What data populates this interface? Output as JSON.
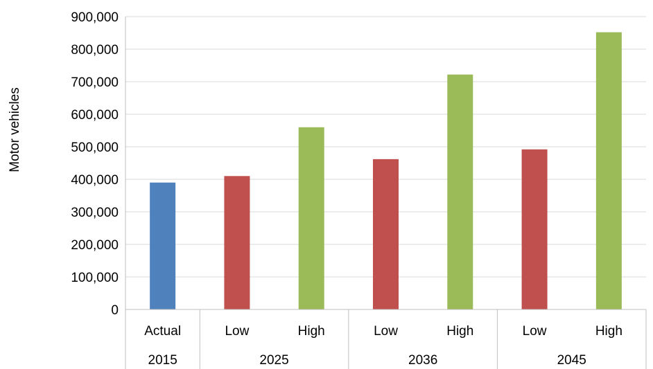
{
  "chart_data": {
    "type": "bar",
    "ylabel": "Motor vehicles",
    "ylim": [
      0,
      900000
    ],
    "yticks": [
      0,
      100000,
      200000,
      300000,
      400000,
      500000,
      600000,
      700000,
      800000,
      900000
    ],
    "ytick_labels": [
      "0",
      "100,000",
      "200,000",
      "300,000",
      "400,000",
      "500,000",
      "600,000",
      "700,000",
      "800,000",
      "900,000"
    ],
    "grid": "horizontal",
    "groups": [
      {
        "label": "2015",
        "categories": [
          "Actual"
        ]
      },
      {
        "label": "2025",
        "categories": [
          "Low",
          "High"
        ]
      },
      {
        "label": "2036",
        "categories": [
          "Low",
          "High"
        ]
      },
      {
        "label": "2045",
        "categories": [
          "Low",
          "High"
        ]
      }
    ],
    "bars": [
      {
        "group": "2015",
        "category": "Actual",
        "value": 390000,
        "color": "#4F81BD"
      },
      {
        "group": "2025",
        "category": "Low",
        "value": 410000,
        "color": "#C0504D"
      },
      {
        "group": "2025",
        "category": "High",
        "value": 560000,
        "color": "#9BBB59"
      },
      {
        "group": "2036",
        "category": "Low",
        "value": 462000,
        "color": "#C0504D"
      },
      {
        "group": "2036",
        "category": "High",
        "value": 722000,
        "color": "#9BBB59"
      },
      {
        "group": "2045",
        "category": "Low",
        "value": 492000,
        "color": "#C0504D"
      },
      {
        "group": "2045",
        "category": "High",
        "value": 852000,
        "color": "#9BBB59"
      }
    ]
  }
}
